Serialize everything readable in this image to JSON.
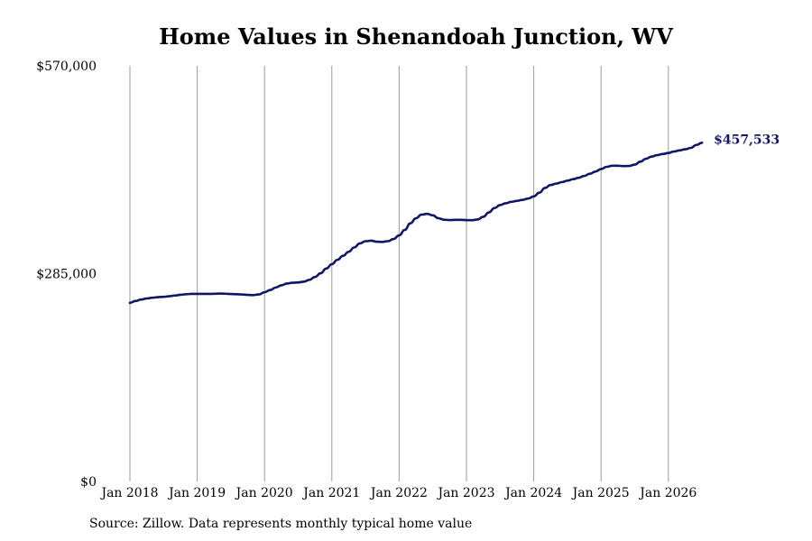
{
  "colors": {
    "line": "#111566",
    "grid": "#9a9a9a",
    "text": "#000000",
    "background": "#ffffff"
  },
  "source": "Source: Zillow. Data represents monthly typical home value",
  "chart_data": {
    "type": "line",
    "title": "Home Values in Shenandoah Junction, WV",
    "xlabel": "",
    "ylabel": "",
    "ylim": [
      0,
      570000
    ],
    "yticks": [
      0,
      285000,
      570000
    ],
    "ytick_labels": [
      "$0",
      "$285,000",
      "$570,000"
    ],
    "xlim": [
      "2018-01",
      "2026-07"
    ],
    "xticks": [
      "2018-01",
      "2019-01",
      "2020-01",
      "2021-01",
      "2022-01",
      "2023-01",
      "2024-01",
      "2025-01",
      "2026-01"
    ],
    "xtick_labels": [
      "Jan 2018",
      "Jan 2019",
      "Jan 2020",
      "Jan 2021",
      "Jan 2022",
      "Jan 2023",
      "Jan 2024",
      "Jan 2025",
      "Jan 2026"
    ],
    "vertical_grid": true,
    "horizontal_grid": false,
    "end_label": "$457,533",
    "series": [
      {
        "x": [
          "2018-01",
          "2018-02",
          "2018-03",
          "2018-04",
          "2018-05",
          "2018-06",
          "2018-07",
          "2018-08",
          "2018-09",
          "2018-10",
          "2018-11",
          "2018-12",
          "2019-01",
          "2019-02",
          "2019-03",
          "2019-04",
          "2019-05",
          "2019-06",
          "2019-07",
          "2019-08",
          "2019-09",
          "2019-10",
          "2019-11",
          "2019-12",
          "2020-01",
          "2020-02",
          "2020-03",
          "2020-04",
          "2020-05",
          "2020-06",
          "2020-07",
          "2020-08",
          "2020-09",
          "2020-10",
          "2020-11",
          "2020-12",
          "2021-01",
          "2021-02",
          "2021-03",
          "2021-04",
          "2021-05",
          "2021-06",
          "2021-07",
          "2021-08",
          "2021-09",
          "2021-10",
          "2021-11",
          "2021-12",
          "2022-01",
          "2022-02",
          "2022-03",
          "2022-04",
          "2022-05",
          "2022-06",
          "2022-07",
          "2022-08",
          "2022-09",
          "2022-10",
          "2022-11",
          "2022-12",
          "2023-01",
          "2023-02",
          "2023-03",
          "2023-04",
          "2023-05",
          "2023-06",
          "2023-07",
          "2023-08",
          "2023-09",
          "2023-10",
          "2023-11",
          "2023-12",
          "2024-01",
          "2024-02",
          "2024-03",
          "2024-04",
          "2024-05",
          "2024-06",
          "2024-07",
          "2024-08",
          "2024-09",
          "2024-10",
          "2024-11",
          "2024-12",
          "2025-01",
          "2025-02",
          "2025-03",
          "2025-04",
          "2025-05",
          "2025-06",
          "2025-07",
          "2025-08",
          "2025-09",
          "2025-10",
          "2025-11",
          "2025-12",
          "2026-01",
          "2026-02",
          "2026-03",
          "2026-04",
          "2026-05",
          "2026-06",
          "2026-07"
        ],
        "values": [
          245000,
          247500,
          249500,
          251000,
          252000,
          252800,
          253300,
          254000,
          255000,
          256000,
          256800,
          257300,
          257300,
          257200,
          257200,
          257400,
          257700,
          257500,
          257100,
          256800,
          256400,
          255900,
          255600,
          256500,
          259500,
          262500,
          266000,
          269000,
          271500,
          272500,
          273000,
          274000,
          276500,
          280500,
          285500,
          292000,
          298000,
          304000,
          309500,
          315000,
          321000,
          326500,
          329500,
          330200,
          328800,
          328500,
          329500,
          332500,
          337500,
          345000,
          354000,
          361000,
          366000,
          367000,
          365000,
          361000,
          359000,
          358500,
          358800,
          358800,
          358400,
          358300,
          359300,
          363000,
          369000,
          375000,
          379000,
          381500,
          383500,
          384800,
          386200,
          388000,
          391000,
          396000,
          402500,
          406500,
          408500,
          410500,
          412500,
          414500,
          416500,
          419000,
          422000,
          425000,
          428500,
          431500,
          433000,
          433000,
          432500,
          432700,
          434500,
          438500,
          442500,
          445500,
          447500,
          449000,
          450500,
          452500,
          454000,
          455500,
          457500,
          461500,
          464500
        ]
      }
    ]
  }
}
